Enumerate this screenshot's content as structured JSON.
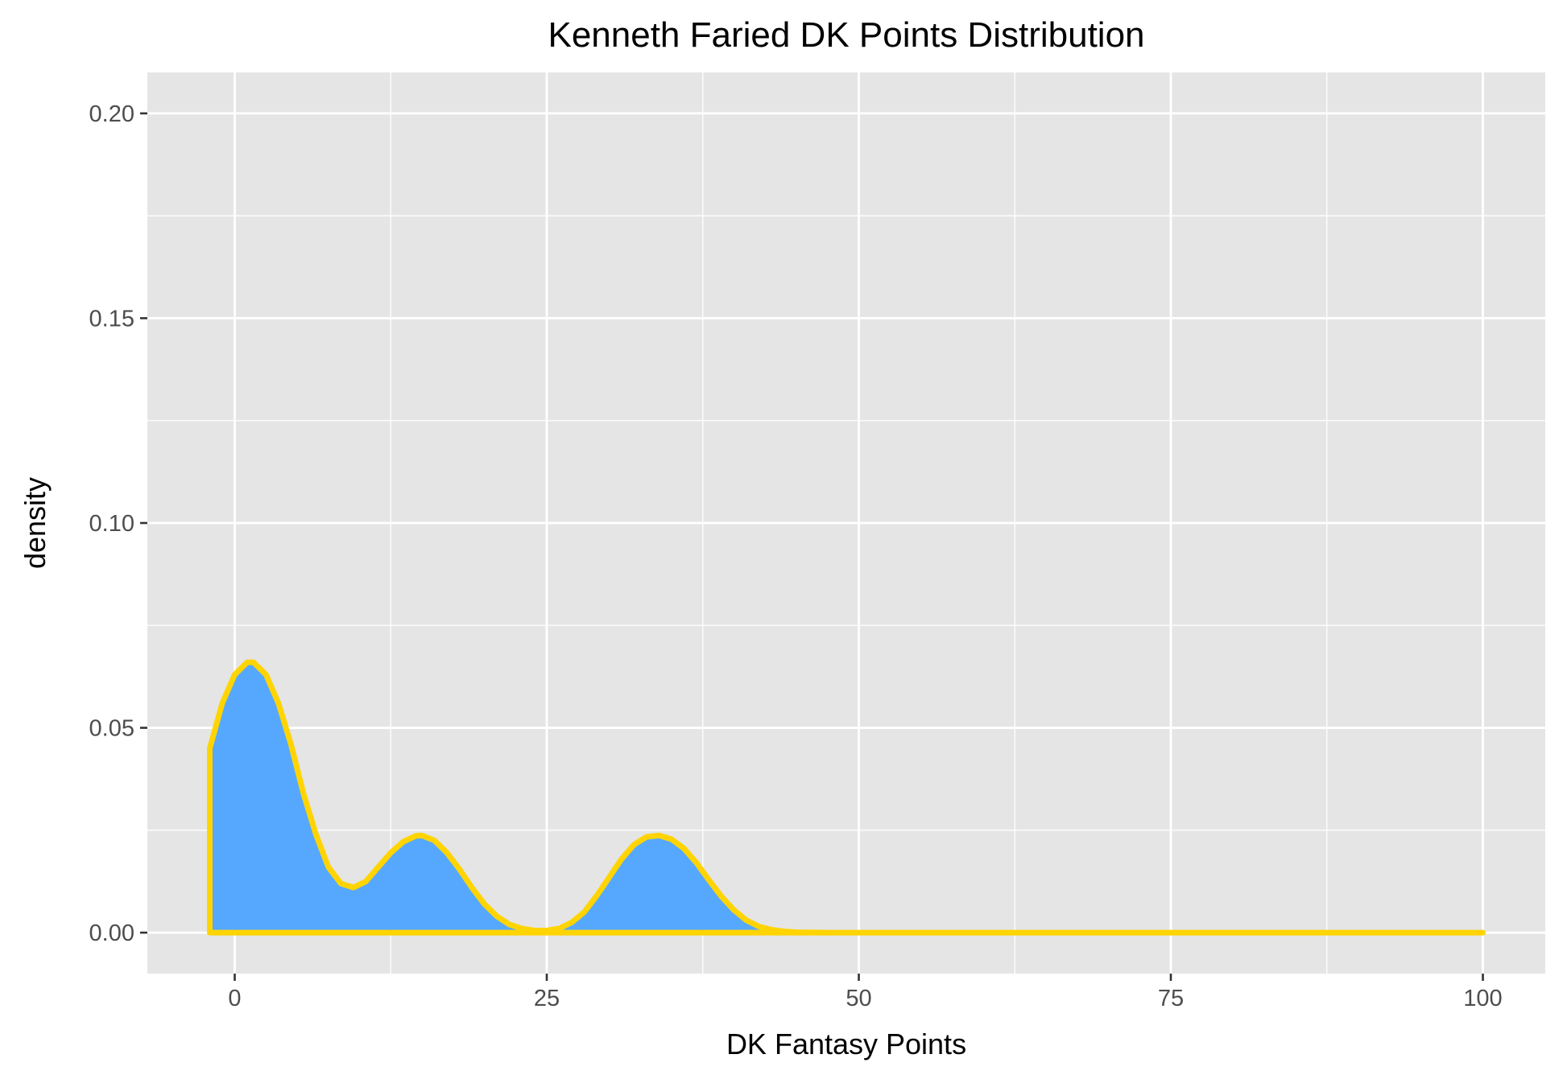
{
  "chart_data": {
    "type": "area",
    "title": "Kenneth Faried DK Points Distribution",
    "xlabel": "DK Fantasy Points",
    "ylabel": "density",
    "xlim": [
      -7,
      105
    ],
    "ylim": [
      -0.01,
      0.21
    ],
    "x_ticks": [
      0,
      25,
      50,
      75,
      100
    ],
    "x_tick_labels": [
      "0",
      "25",
      "50",
      "75",
      "100"
    ],
    "y_ticks": [
      0.0,
      0.05,
      0.1,
      0.15,
      0.2
    ],
    "y_tick_labels": [
      "0.00",
      "0.05",
      "0.10",
      "0.15",
      "0.20"
    ],
    "grid": true,
    "fill_color": "#56a8ff",
    "line_color": "#ffd400",
    "panel_color": "#e5e5e5",
    "series": [
      {
        "x": [
          -2.0,
          -1.0,
          0.0,
          1.0,
          1.5,
          2.5,
          3.5,
          4.5,
          5.5,
          6.5,
          7.5,
          8.5,
          9.5,
          10.5,
          11.5,
          12.5,
          13.5,
          14.5,
          15.0,
          16.0,
          17.0,
          18.0,
          19.0,
          20.0,
          21.0,
          22.0,
          23.0,
          24.0,
          25.0,
          26.0,
          27.0,
          28.0,
          29.0,
          30.0,
          31.0,
          32.0,
          33.0,
          34.0,
          35.0,
          36.0,
          37.0,
          38.0,
          39.0,
          40.0,
          41.0,
          42.0,
          43.0,
          44.0,
          45.0,
          46.0,
          47.0,
          48.0,
          50.0,
          60.0,
          75.0,
          90.0,
          100.0
        ],
        "y": [
          0.045,
          0.056,
          0.063,
          0.066,
          0.066,
          0.063,
          0.056,
          0.046,
          0.034,
          0.024,
          0.016,
          0.012,
          0.011,
          0.0125,
          0.016,
          0.0195,
          0.0222,
          0.0236,
          0.0237,
          0.0225,
          0.0195,
          0.0155,
          0.011,
          0.007,
          0.004,
          0.002,
          0.001,
          0.0005,
          0.0005,
          0.001,
          0.0025,
          0.005,
          0.009,
          0.0135,
          0.018,
          0.0215,
          0.0234,
          0.0237,
          0.0228,
          0.0205,
          0.017,
          0.0128,
          0.0088,
          0.0055,
          0.003,
          0.0015,
          0.0007,
          0.0003,
          0.0001,
          5e-05,
          0.0,
          0.0,
          0.0,
          0.0,
          0.0,
          0.0,
          0.0
        ]
      }
    ]
  }
}
